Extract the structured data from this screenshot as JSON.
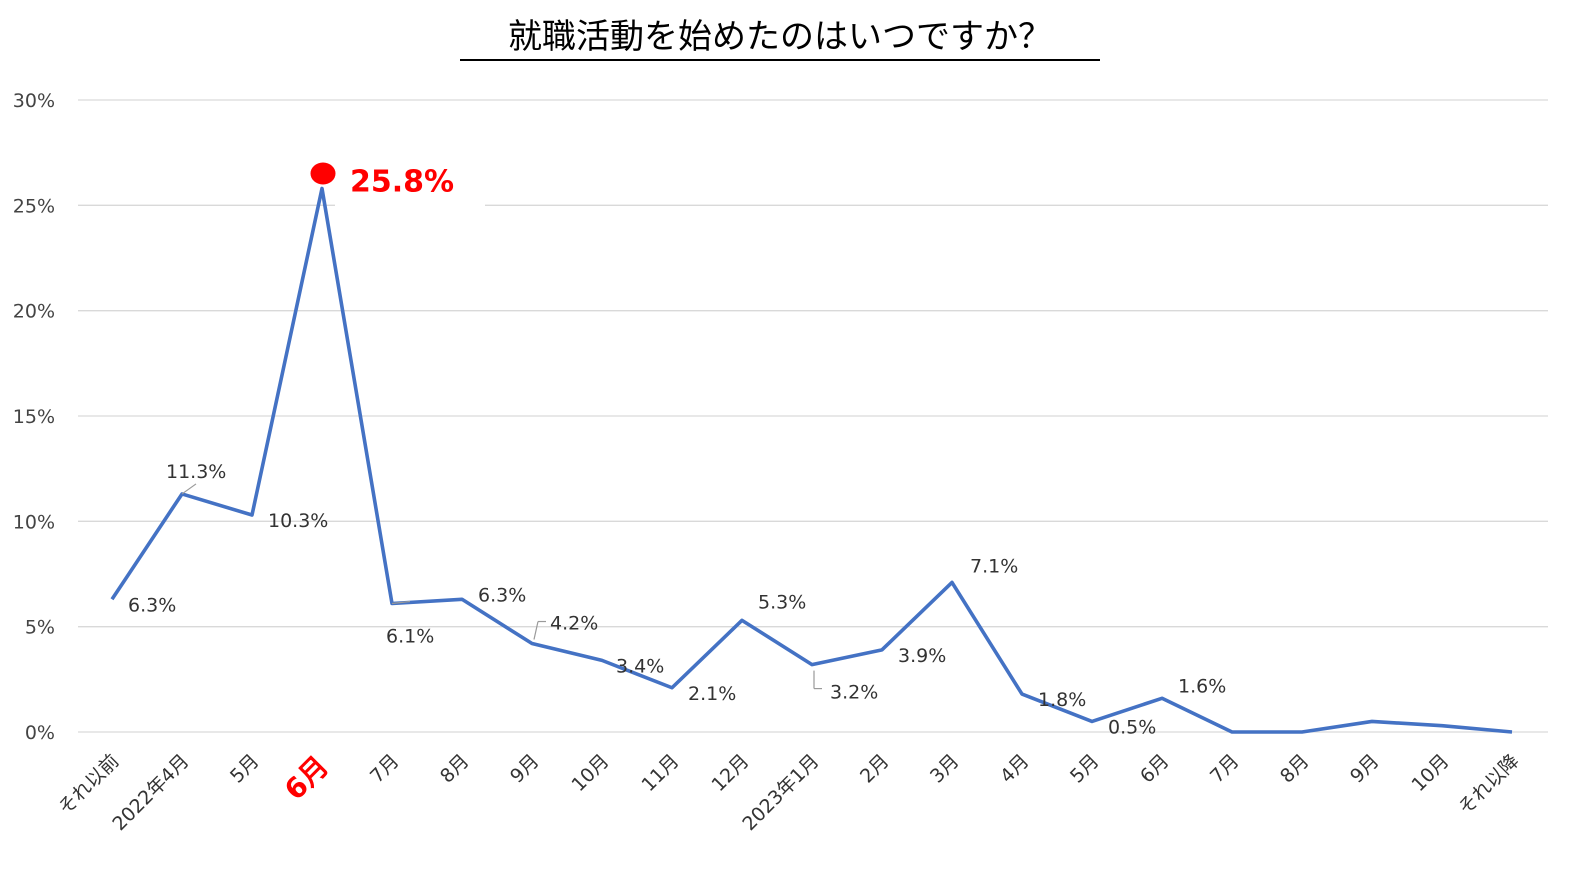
{
  "chart_data": {
    "type": "line",
    "title": "就職活動を始めたのはいつですか？",
    "categories": [
      "それ以前",
      "2022年4月",
      "5月",
      "6月",
      "7月",
      "8月",
      "9月",
      "10月",
      "11月",
      "12月",
      "2023年1月",
      "2月",
      "3月",
      "4月",
      "5月",
      "6月",
      "7月",
      "8月",
      "9月",
      "10月",
      "それ以降"
    ],
    "series": [
      {
        "values": [
          6.3,
          11.3,
          10.3,
          25.8,
          6.1,
          6.3,
          4.2,
          3.4,
          2.1,
          5.3,
          3.2,
          3.9,
          7.1,
          1.8,
          0.5,
          1.6,
          0.0,
          0.0,
          0.5,
          0.3,
          0.0
        ]
      }
    ],
    "data_labels": [
      "6.3%",
      "11.3%",
      "10.3%",
      "25.8%",
      "6.1%",
      "6.3%",
      "4.2%",
      "3.4%",
      "2.1%",
      "5.3%",
      "3.2%",
      "3.9%",
      "7.1%",
      "1.8%",
      "0.5%",
      "1.6%",
      "",
      "",
      "",
      "",
      ""
    ],
    "y_ticks": [
      "0%",
      "5%",
      "10%",
      "15%",
      "20%",
      "25%",
      "30%"
    ],
    "ylim": [
      0,
      30
    ],
    "y_tick_step": 5,
    "grid": true,
    "legend": "none",
    "highlight_index": 3,
    "colors": {
      "series": "#4472c4",
      "highlight": "#ff0000",
      "grid": "#d9d9d9"
    }
  }
}
